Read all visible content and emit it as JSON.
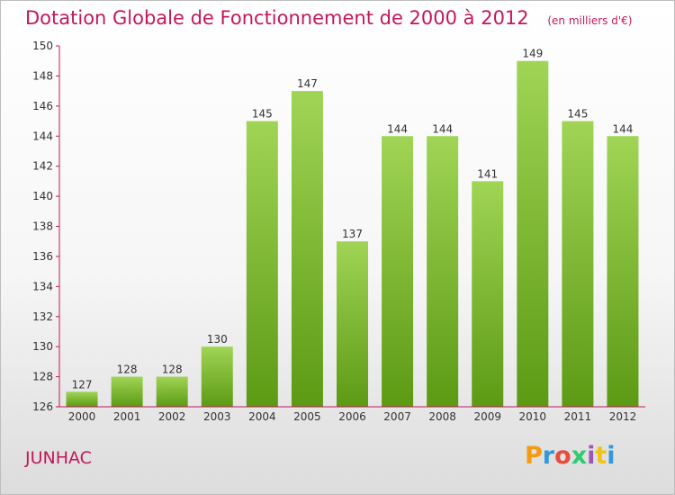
{
  "header": {
    "title": "Dotation Globale de Fonctionnement de 2000 à 2012",
    "subtitle": "(en milliers d'€)"
  },
  "footer": {
    "commune": "JUNHAC",
    "logo": "Proxiti",
    "logo_colors": [
      "#f39c12",
      "#3498db",
      "#e74c3c",
      "#2ecc71",
      "#9b59b6",
      "#f1c40f",
      "#3498db"
    ]
  },
  "chart_data": {
    "type": "bar",
    "title": "Dotation Globale de Fonctionnement de 2000 à 2012",
    "subtitle": "(en milliers d'€)",
    "xlabel": "",
    "ylabel": "",
    "categories": [
      "2000",
      "2001",
      "2002",
      "2003",
      "2004",
      "2005",
      "2006",
      "2007",
      "2008",
      "2009",
      "2010",
      "2011",
      "2012"
    ],
    "values": [
      127,
      128,
      128,
      130,
      145,
      147,
      137,
      144,
      144,
      141,
      149,
      145,
      144
    ],
    "ylim": [
      126,
      150
    ],
    "yticks": [
      126,
      128,
      130,
      132,
      134,
      136,
      138,
      140,
      142,
      144,
      146,
      148,
      150
    ],
    "grid": false,
    "bar_color_top": "#a0d455",
    "bar_color_bottom": "#5c9a14",
    "axis_color": "#c2185b"
  }
}
